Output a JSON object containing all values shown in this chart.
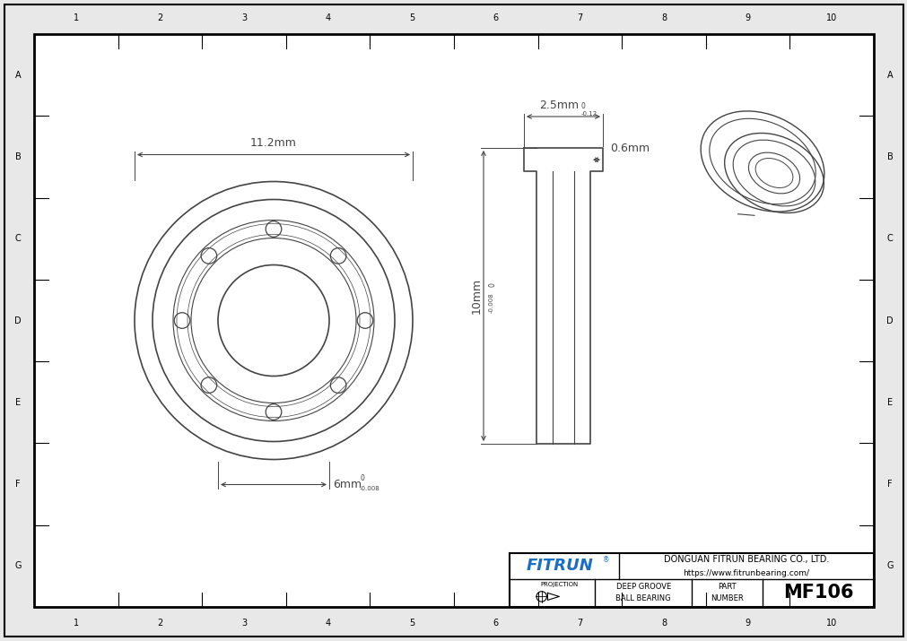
{
  "bg_color": "#e8e8e8",
  "paper_color": "#ffffff",
  "border_color": "#000000",
  "dim_color": "#444444",
  "fitrun_blue": "#1a6fc4",
  "grid_rows": [
    "A",
    "B",
    "C",
    "D",
    "E",
    "F",
    "G"
  ],
  "grid_cols": [
    "1",
    "2",
    "3",
    "4",
    "5",
    "6",
    "7",
    "8",
    "9",
    "10"
  ],
  "company_name": "DONGUAN FITRUN BEARING CO., LTD.",
  "company_url": "https://www.fitrunbearing.com/",
  "part_number": "MF106",
  "projection_label": "PROJECTION",
  "dim_outer": "11.2mm",
  "dim_inner": "6mm",
  "dim_width": "2.5mm",
  "dim_flange": "0.6mm",
  "dim_height": "10mm"
}
